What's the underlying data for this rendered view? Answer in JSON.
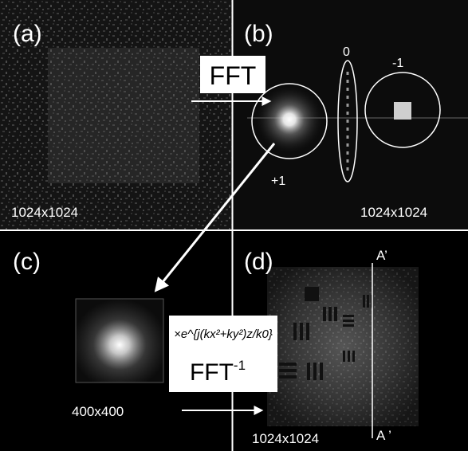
{
  "panels": {
    "a": {
      "label": "(a)",
      "size": "1024x1024"
    },
    "b": {
      "label": "(b)",
      "size": "1024x1024",
      "orders": {
        "plus_one": "+1",
        "zero": "0",
        "minus_one": "-1"
      }
    },
    "c": {
      "label": "(c)",
      "size": "400x400"
    },
    "d": {
      "label": "(d)",
      "size": "1024x1024",
      "line_top": "A’",
      "line_bottom": "A ’"
    }
  },
  "operations": {
    "forward": "FFT",
    "inverse": "FFT",
    "inverse_sup": "-1",
    "propagator": "×e^{j(kx²+ky²)z/k0}"
  },
  "colors": {
    "background": "#000000",
    "divider": "#ffffff",
    "text": "#ffffff",
    "box": "#ffffff"
  }
}
